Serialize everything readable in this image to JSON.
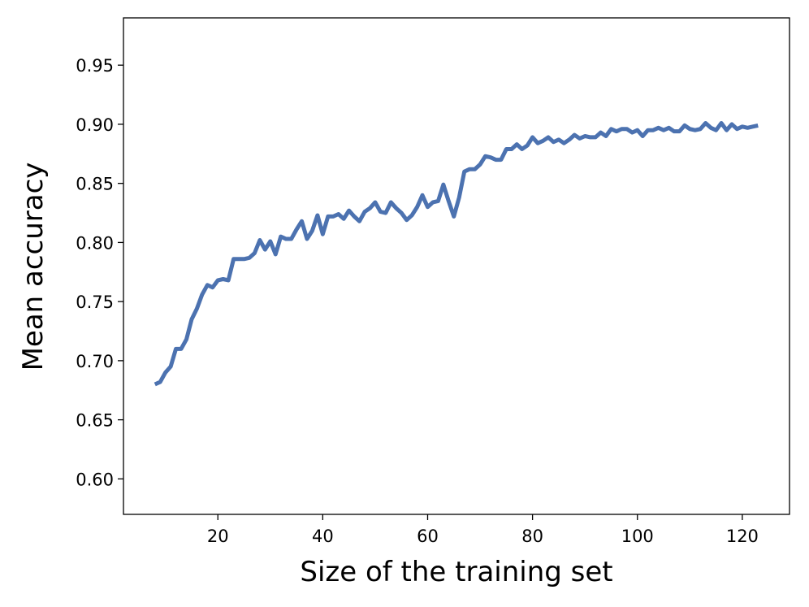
{
  "chart_data": {
    "type": "line",
    "title": "",
    "xlabel": "Size of the training set",
    "ylabel": "Mean accuracy",
    "xlim": [
      2,
      129
    ],
    "ylim": [
      0.57,
      0.99
    ],
    "xticks": [
      20,
      40,
      60,
      80,
      100,
      120
    ],
    "yticks": [
      0.6,
      0.65,
      0.7,
      0.75,
      0.8,
      0.85,
      0.9,
      0.95
    ],
    "grid": false,
    "legend": null,
    "colors": {
      "line": "#4c72b0",
      "axes": "#000000",
      "background": "#ffffff"
    },
    "series": [
      {
        "x": [
          8,
          9,
          10,
          11,
          12,
          13,
          14,
          15,
          16,
          17,
          18,
          19,
          20,
          21,
          22,
          23,
          24,
          25,
          26,
          27,
          28,
          29,
          30,
          31,
          32,
          33,
          34,
          35,
          36,
          37,
          38,
          39,
          40,
          41,
          42,
          43,
          44,
          45,
          46,
          47,
          48,
          49,
          50,
          51,
          52,
          53,
          54,
          55,
          56,
          57,
          58,
          59,
          60,
          61,
          62,
          63,
          64,
          65,
          66,
          67,
          68,
          69,
          70,
          71,
          72,
          73,
          74,
          75,
          76,
          77,
          78,
          79,
          80,
          81,
          82,
          83,
          84,
          85,
          86,
          87,
          88,
          89,
          90,
          91,
          92,
          93,
          94,
          95,
          96,
          97,
          98,
          99,
          100,
          101,
          102,
          103,
          104,
          105,
          106,
          107,
          108,
          109,
          110,
          111,
          112,
          113,
          114,
          115,
          116,
          117,
          118,
          119,
          120,
          121,
          122,
          123
        ],
        "values": [
          0.68,
          0.682,
          0.69,
          0.695,
          0.71,
          0.71,
          0.718,
          0.735,
          0.744,
          0.756,
          0.764,
          0.762,
          0.768,
          0.769,
          0.768,
          0.786,
          0.786,
          0.786,
          0.787,
          0.791,
          0.802,
          0.794,
          0.801,
          0.79,
          0.805,
          0.803,
          0.803,
          0.811,
          0.818,
          0.803,
          0.81,
          0.823,
          0.807,
          0.822,
          0.822,
          0.824,
          0.82,
          0.827,
          0.822,
          0.818,
          0.826,
          0.829,
          0.834,
          0.826,
          0.825,
          0.834,
          0.829,
          0.825,
          0.819,
          0.823,
          0.83,
          0.84,
          0.83,
          0.834,
          0.835,
          0.849,
          0.835,
          0.822,
          0.838,
          0.86,
          0.862,
          0.862,
          0.866,
          0.873,
          0.872,
          0.87,
          0.87,
          0.879,
          0.879,
          0.883,
          0.879,
          0.882,
          0.889,
          0.884,
          0.886,
          0.889,
          0.885,
          0.887,
          0.884,
          0.887,
          0.891,
          0.888,
          0.89,
          0.889,
          0.889,
          0.893,
          0.89,
          0.896,
          0.894,
          0.896,
          0.896,
          0.893,
          0.895,
          0.89,
          0.895,
          0.895,
          0.897,
          0.895,
          0.897,
          0.894,
          0.894,
          0.899,
          0.896,
          0.895,
          0.896,
          0.901,
          0.897,
          0.895,
          0.901,
          0.895,
          0.9,
          0.896,
          0.898,
          0.897,
          0.898,
          0.899
        ]
      }
    ]
  }
}
